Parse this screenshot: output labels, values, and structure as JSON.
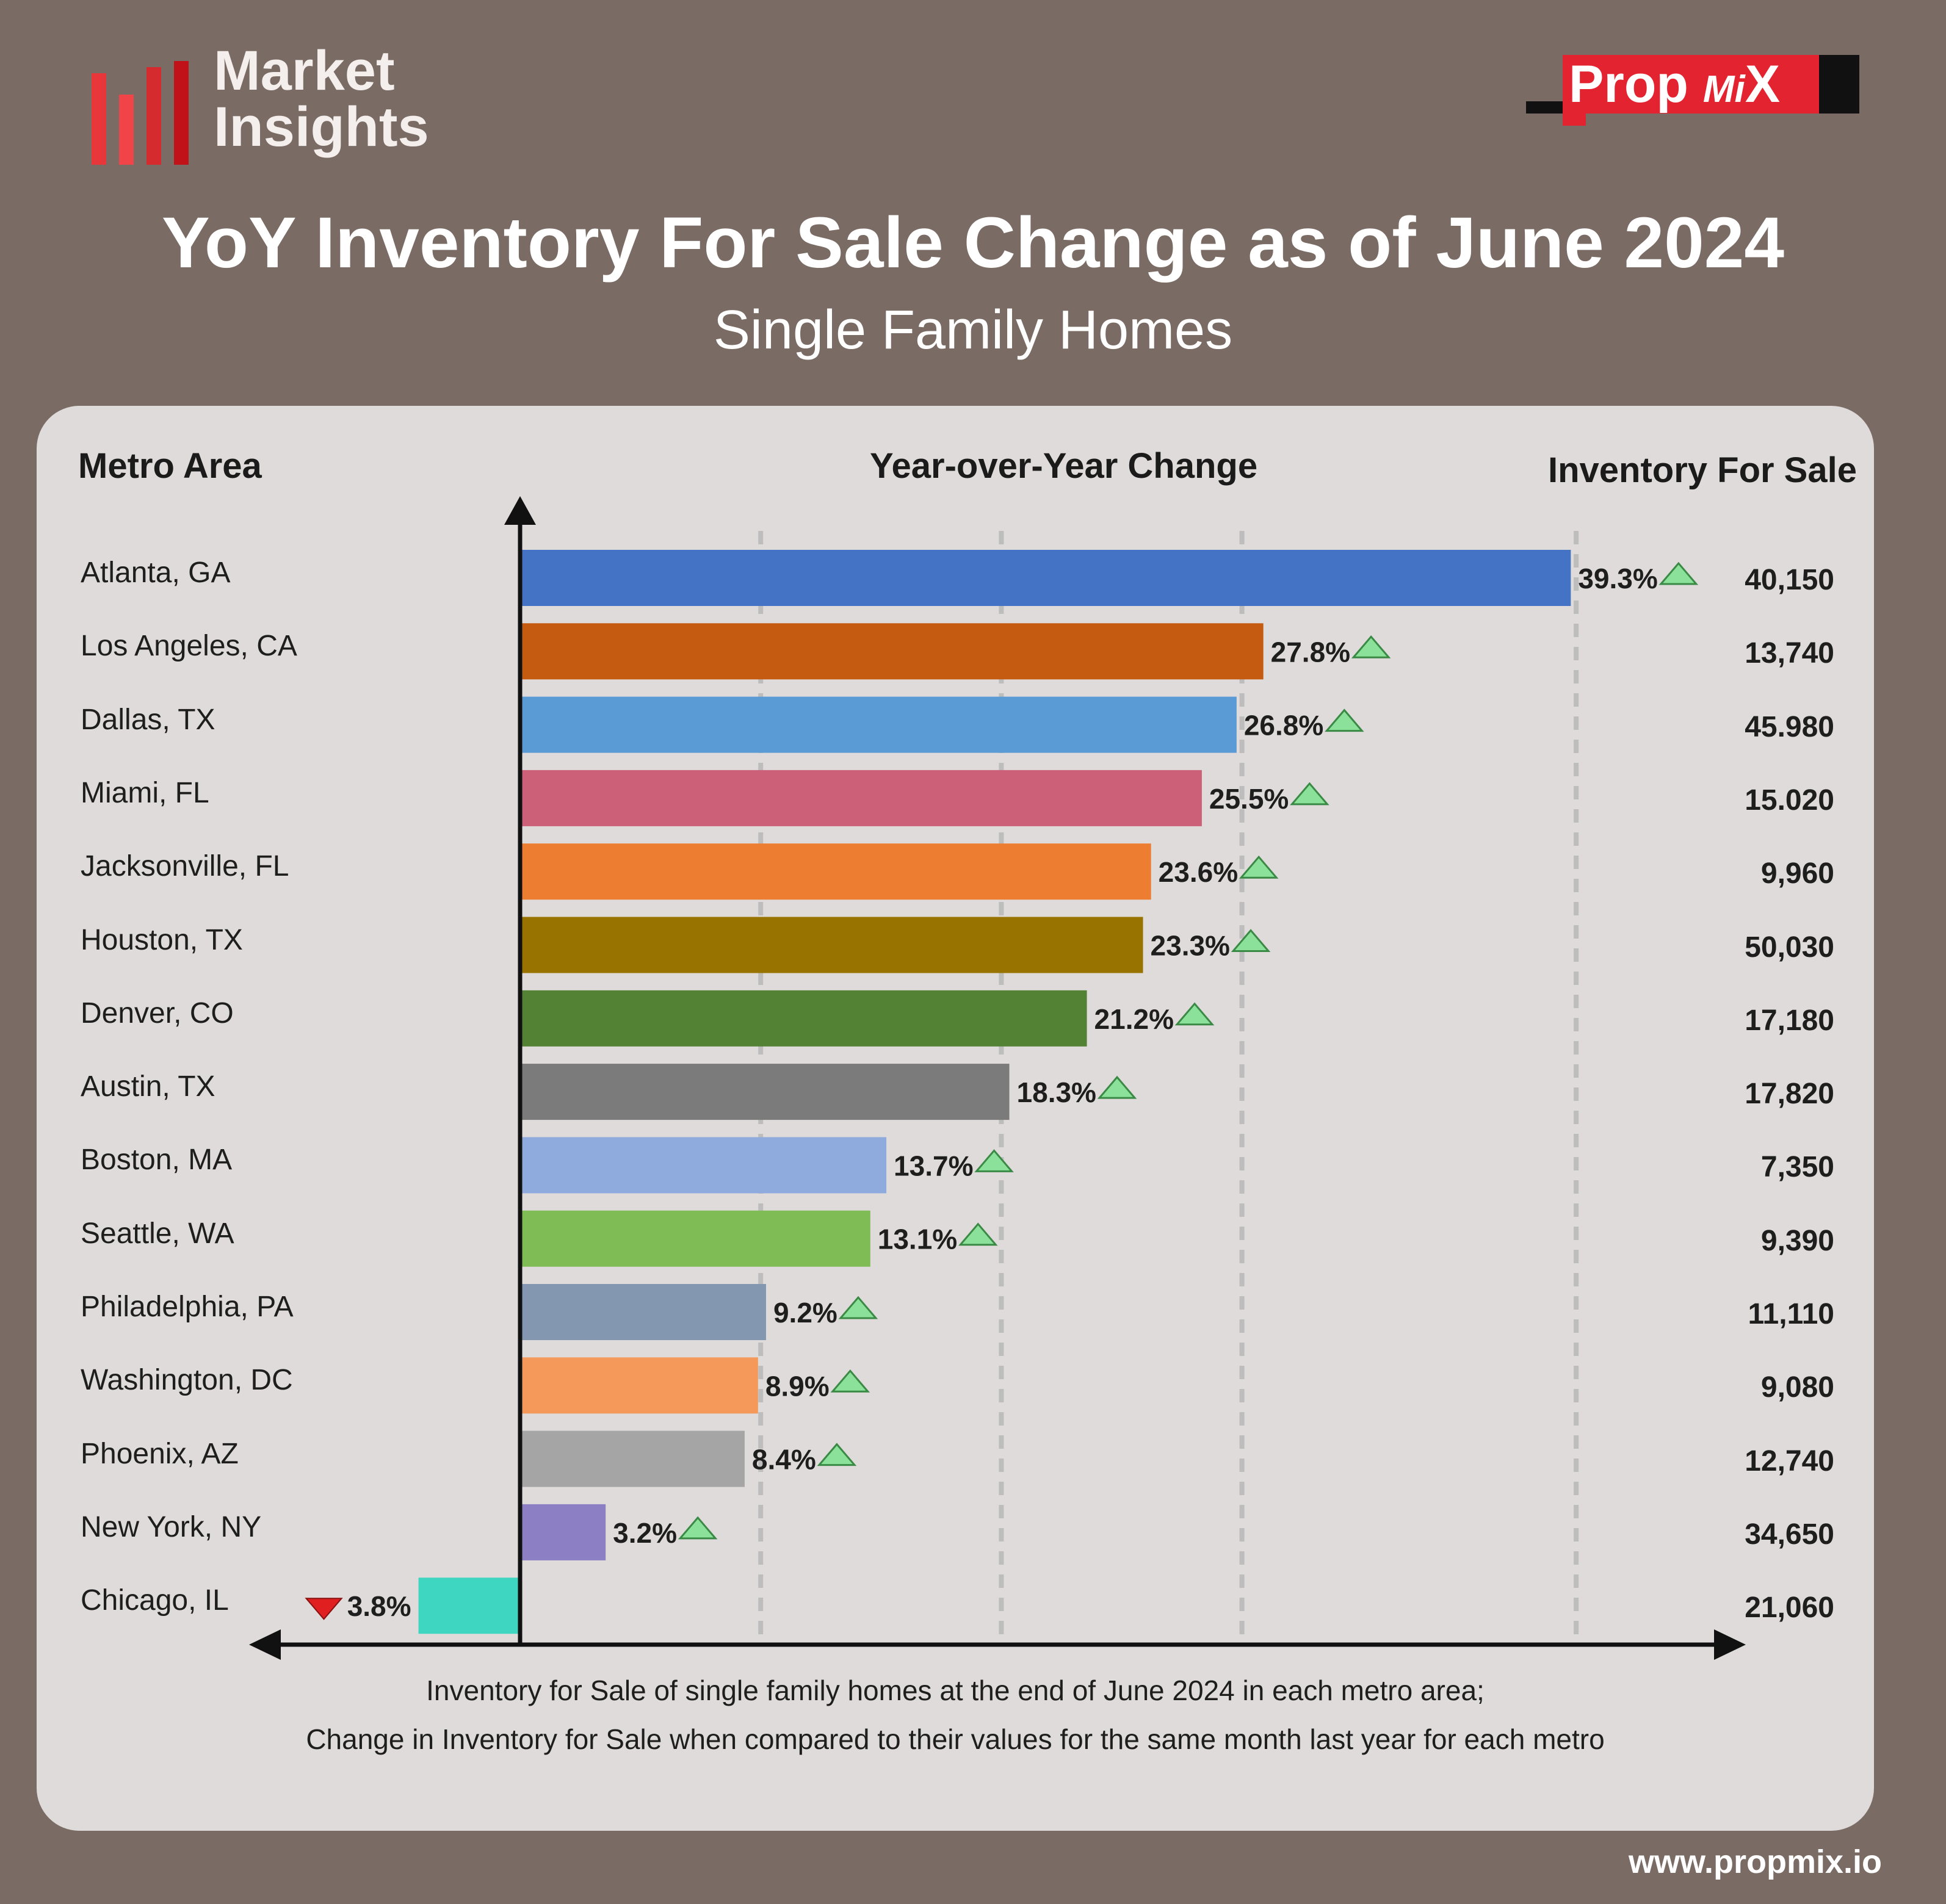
{
  "brand": {
    "line1": "Market",
    "line2": "Insights",
    "bar_color": "#e53935"
  },
  "partner": {
    "prefix": "Prop",
    "middle": "Mi",
    "suffix": "X",
    "accent": "#e3232f"
  },
  "header": {
    "title": "YoY Inventory For Sale Change as of June 2024",
    "subtitle": "Single Family Homes"
  },
  "columns": {
    "metro": "Metro Area",
    "change": "Year-over-Year Change",
    "inventory": "Inventory For Sale"
  },
  "chart_data": {
    "type": "bar",
    "orientation": "horizontal",
    "grid": true,
    "xlim": [
      -5,
      40
    ],
    "categories": [
      "Atlanta, GA",
      "Los Angeles, CA",
      "Dallas, TX",
      "Miami, FL",
      "Jacksonville, FL",
      "Houston, TX",
      "Denver, CO",
      "Austin, TX",
      "Boston, MA",
      "Seattle, WA",
      "Philadelphia, PA",
      "Washington, DC",
      "Phoenix, AZ",
      "New York, NY",
      "Chicago, IL"
    ],
    "values": [
      39.3,
      27.8,
      26.8,
      25.5,
      23.6,
      23.3,
      21.2,
      18.3,
      13.7,
      13.1,
      9.2,
      8.9,
      8.4,
      3.2,
      -3.8
    ],
    "value_labels": [
      "39.3%",
      "27.8%",
      "26.8%",
      "25.5%",
      "23.6%",
      "23.3%",
      "21.2%",
      "18.3%",
      "13.7%",
      "13.1%",
      "9.2%",
      "8.9%",
      "8.4%",
      "3.2%",
      "3.8%"
    ],
    "inventory": [
      "40,150",
      "13,740",
      "45.980",
      "15.020",
      "9,960",
      "50,030",
      "17,180",
      "17,820",
      "7,350",
      "9,390",
      "11,110",
      "9,080",
      "12,740",
      "34,650",
      "21,060"
    ],
    "colors": [
      "#4472c4",
      "#c55a11",
      "#5b9bd5",
      "#cc6079",
      "#ed7d31",
      "#997300",
      "#548235",
      "#7b7b7b",
      "#8faadc",
      "#7fbc55",
      "#8497b0",
      "#f4995a",
      "#a5a5a5",
      "#8c7fc4",
      "#3fd6c1"
    ],
    "up_color": "#8be09a",
    "down_color": "#e02020"
  },
  "footnote": {
    "line1": "Inventory for Sale of single family homes at the end of June 2024 in each metro area;",
    "line2": "Change in Inventory for Sale when compared to their values for the same month last year for each metro"
  },
  "website": "www.propmix.io"
}
